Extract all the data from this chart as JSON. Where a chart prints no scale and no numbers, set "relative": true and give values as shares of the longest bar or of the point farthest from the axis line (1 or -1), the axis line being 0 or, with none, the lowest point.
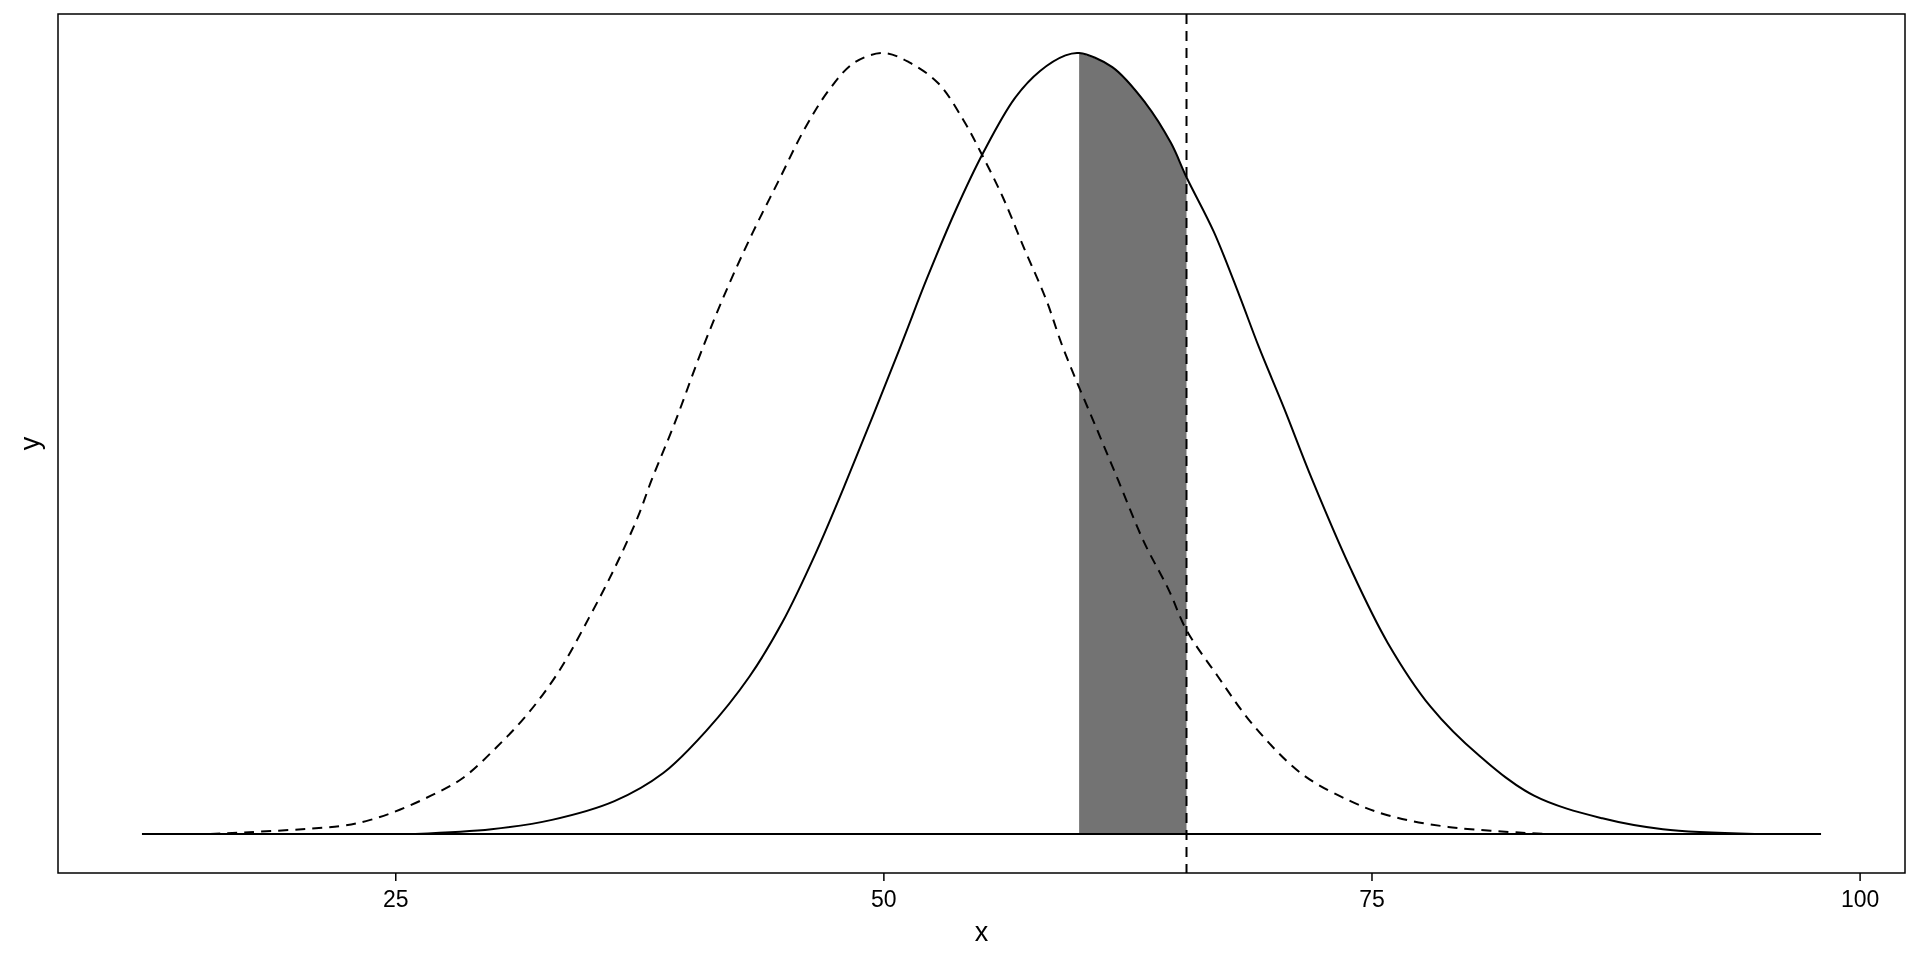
{
  "chart_data": {
    "type": "line",
    "xlabel": "x",
    "ylabel": "y",
    "relative": true,
    "xlim": [
      7.7,
      102.3
    ],
    "xticks": [
      25,
      50,
      75,
      100
    ],
    "tick_labels": "x",
    "series": [
      {
        "type": "area",
        "color": "#737373",
        "x": [
          60,
          61.7,
          63.4,
          64.7,
          65.5
        ],
        "values": [
          1,
          0.982,
          0.936,
          0.885,
          0.841
        ]
      },
      {
        "color": "#000000",
        "line_style": "dashed",
        "x": [
          15.5,
          22.1,
          23.7,
          25.2,
          26.8,
          28.4,
          30.2,
          31.8,
          33.4,
          34.9,
          36.2,
          37.4,
          38.1,
          39.3,
          40.7,
          42.0,
          43.3,
          44.6,
          45.9,
          47.2,
          48.5,
          50.0,
          51.3,
          52.8,
          54.1,
          55.0,
          56.1,
          57.2,
          58.3,
          59.2,
          61.1,
          62.0,
          63.3,
          64.6,
          65.5,
          67.1,
          68.9,
          71.4,
          73.9,
          75.8,
          78.9,
          83.9
        ],
        "values": [
          0,
          0.01,
          0.018,
          0.031,
          0.049,
          0.071,
          0.112,
          0.155,
          0.21,
          0.277,
          0.34,
          0.406,
          0.453,
          0.527,
          0.621,
          0.7,
          0.771,
          0.836,
          0.901,
          0.953,
          0.988,
          1,
          0.988,
          0.961,
          0.913,
          0.871,
          0.815,
          0.749,
          0.685,
          0.621,
          0.507,
          0.453,
          0.375,
          0.312,
          0.261,
          0.202,
          0.14,
          0.077,
          0.042,
          0.024,
          0.009,
          0
        ]
      },
      {
        "color": "#000000",
        "line_style": "solid",
        "x": [
          26,
          29.9,
          33.0,
          36.2,
          38.7,
          40.9,
          43.1,
          44.8,
          46.5,
          48.1,
          50.8,
          52.2,
          53.7,
          55.1,
          56.7,
          58.0,
          59.3,
          60.0,
          61.7,
          63.4,
          64.7,
          65.5,
          66.9,
          68.2,
          69.2,
          70.5,
          71.9,
          73.9,
          75.8,
          78.0,
          80.5,
          83.3,
          86.8,
          89.9,
          94.6
        ],
        "values": [
          0,
          0.006,
          0.018,
          0.042,
          0.078,
          0.132,
          0.201,
          0.271,
          0.359,
          0.453,
          0.621,
          0.711,
          0.8,
          0.873,
          0.942,
          0.977,
          0.997,
          1,
          0.982,
          0.936,
          0.885,
          0.841,
          0.771,
          0.69,
          0.624,
          0.545,
          0.456,
          0.34,
          0.245,
          0.163,
          0.1,
          0.049,
          0.02,
          0.006,
          0
        ]
      },
      {
        "color": "#000000",
        "line_style": "solid",
        "x": [
          12,
          98
        ],
        "values": [
          0,
          0
        ]
      }
    ],
    "ref_lines": [
      {
        "axis": "x",
        "value": 65.5,
        "color": "#000000",
        "line_style": "dashed"
      }
    ]
  }
}
